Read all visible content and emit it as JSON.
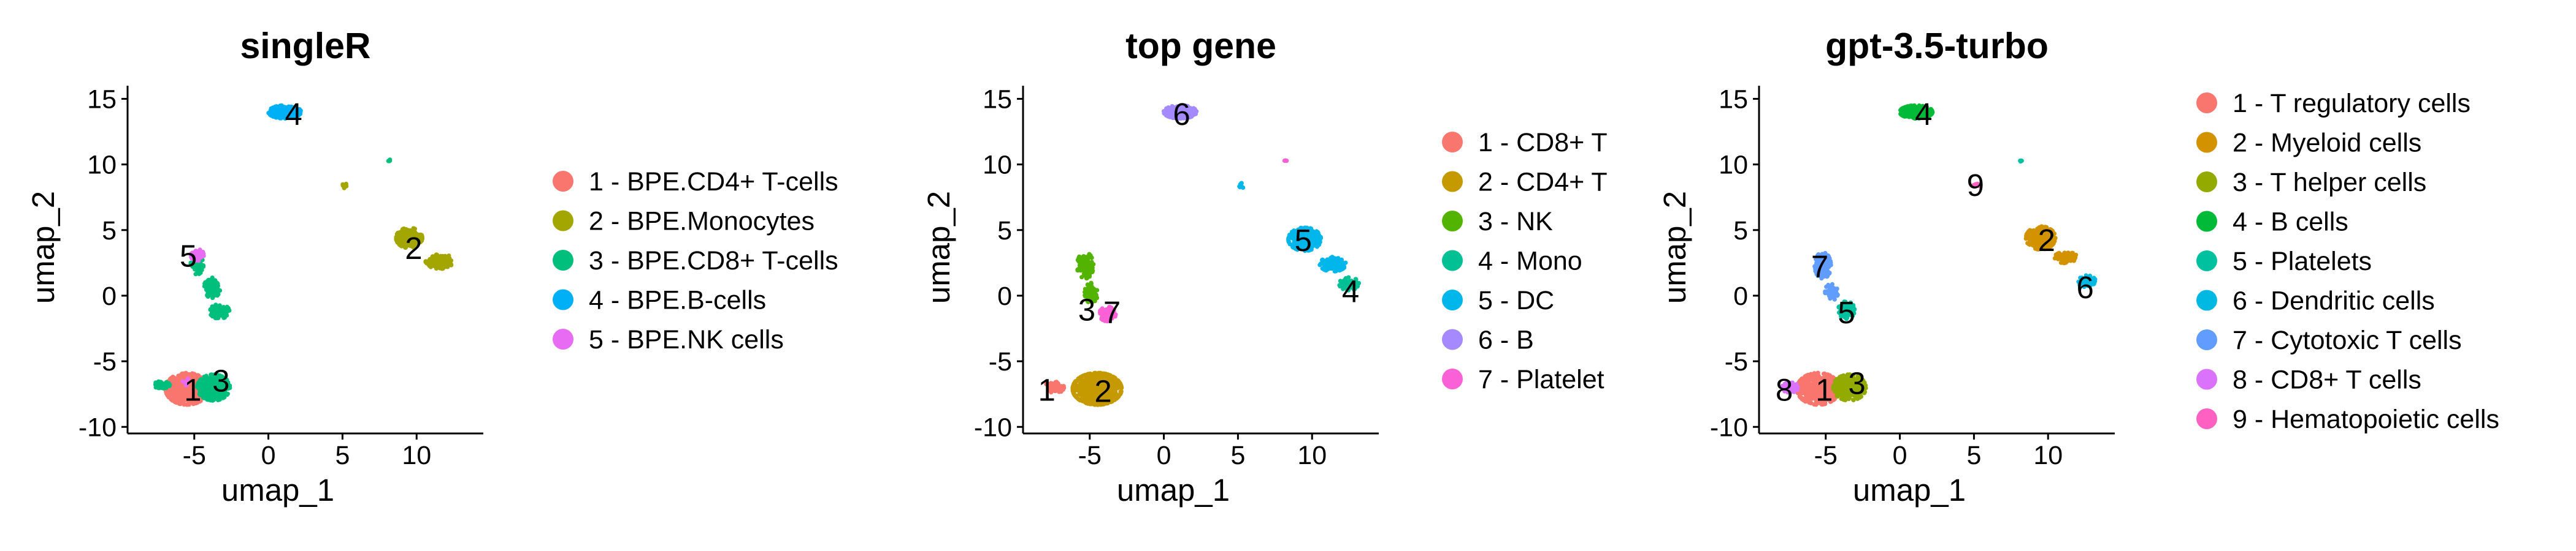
{
  "chart_data": [
    {
      "type": "scatter",
      "title": "singleR",
      "xlabel": "umap_1",
      "ylabel": "umap_2",
      "xlim": [
        -9.5,
        14.5
      ],
      "ylim": [
        -10.5,
        16
      ],
      "xticks": [
        -5,
        0,
        5,
        10
      ],
      "yticks": [
        -10,
        -5,
        0,
        5,
        10,
        15
      ],
      "legend_position": "right",
      "series": [
        {
          "name": "1 - BPE.CD4+ T-cells",
          "label": "1",
          "color": "#F8766D",
          "label_pos": [
            -5.1,
            -7.2
          ],
          "clusters": [
            {
              "x": -5.5,
              "y": -7.1,
              "sx": 1.3,
              "sy": 1.1,
              "n": 700
            }
          ]
        },
        {
          "name": "2 - BPE.Monocytes",
          "label": "2",
          "color": "#A3A500",
          "label_pos": [
            9.8,
            3.6
          ],
          "clusters": [
            {
              "x": 9.5,
              "y": 4.4,
              "sx": 0.8,
              "sy": 0.7,
              "n": 320
            },
            {
              "x": 11.6,
              "y": 2.6,
              "sx": 0.9,
              "sy": 0.5,
              "n": 180
            },
            {
              "x": 5.2,
              "y": 8.4,
              "sx": 0.2,
              "sy": 0.2,
              "n": 10
            }
          ]
        },
        {
          "name": "3 - BPE.CD8+ T-cells",
          "label": "3",
          "color": "#00BF7D",
          "label_pos": [
            -3.2,
            -6.5
          ],
          "clusters": [
            {
              "x": -3.7,
              "y": -7.0,
              "sx": 1.0,
              "sy": 0.9,
              "n": 420
            },
            {
              "x": -7.2,
              "y": -6.8,
              "sx": 0.5,
              "sy": 0.25,
              "n": 60
            },
            {
              "x": -4.8,
              "y": 2.5,
              "sx": 0.4,
              "sy": 0.8,
              "n": 60
            },
            {
              "x": -3.8,
              "y": 0.6,
              "sx": 0.5,
              "sy": 0.7,
              "n": 90
            },
            {
              "x": -3.3,
              "y": -1.2,
              "sx": 0.6,
              "sy": 0.5,
              "n": 120
            },
            {
              "x": 8.2,
              "y": 10.3,
              "sx": 0.1,
              "sy": 0.1,
              "n": 4
            }
          ]
        },
        {
          "name": "4 - BPE.B-cells",
          "label": "4",
          "color": "#00B0F6",
          "label_pos": [
            1.7,
            13.8
          ],
          "clusters": [
            {
              "x": 1.1,
              "y": 14.0,
              "sx": 1.0,
              "sy": 0.45,
              "n": 320
            }
          ]
        },
        {
          "name": "5 - BPE.NK cells",
          "label": "5",
          "color": "#E76BF3",
          "label_pos": [
            -5.4,
            3.0
          ],
          "clusters": [
            {
              "x": -4.8,
              "y": 3.1,
              "sx": 0.4,
              "sy": 0.4,
              "n": 40
            },
            {
              "x": -5.6,
              "y": -6.6,
              "sx": 0.3,
              "sy": 0.3,
              "n": 8
            }
          ]
        }
      ]
    },
    {
      "type": "scatter",
      "title": "top gene",
      "xlabel": "umap_1",
      "ylabel": "umap_2",
      "xlim": [
        -9.5,
        14.5
      ],
      "ylim": [
        -10.5,
        16
      ],
      "xticks": [
        -5,
        0,
        5,
        10
      ],
      "yticks": [
        -10,
        -5,
        0,
        5,
        10,
        15
      ],
      "legend_position": "right",
      "series": [
        {
          "name": "1 - CD8+ T",
          "label": "1",
          "color": "#F8766D",
          "label_pos": [
            -7.9,
            -7.2
          ],
          "clusters": [
            {
              "x": -7.4,
              "y": -7.0,
              "sx": 0.6,
              "sy": 0.4,
              "n": 90
            }
          ]
        },
        {
          "name": "2 - CD4+ T",
          "label": "2",
          "color": "#C49A00",
          "label_pos": [
            -4.1,
            -7.3
          ],
          "clusters": [
            {
              "x": -4.5,
              "y": -7.1,
              "sx": 1.5,
              "sy": 1.1,
              "n": 1000
            }
          ]
        },
        {
          "name": "3 - NK",
          "label": "3",
          "color": "#53B400",
          "label_pos": [
            -5.2,
            -1.1
          ],
          "clusters": [
            {
              "x": -5.3,
              "y": 2.3,
              "sx": 0.5,
              "sy": 0.9,
              "n": 130
            },
            {
              "x": -4.9,
              "y": 0.2,
              "sx": 0.4,
              "sy": 0.7,
              "n": 80
            }
          ]
        },
        {
          "name": "4 - Mono",
          "label": "4",
          "color": "#00C094",
          "label_pos": [
            12.6,
            0.3
          ],
          "clusters": [
            {
              "x": 12.5,
              "y": 0.9,
              "sx": 0.6,
              "sy": 0.45,
              "n": 70
            }
          ]
        },
        {
          "name": "5 - DC",
          "label": "5",
          "color": "#00B6EB",
          "label_pos": [
            9.4,
            4.2
          ],
          "clusters": [
            {
              "x": 9.5,
              "y": 4.3,
              "sx": 1.0,
              "sy": 0.8,
              "n": 400
            },
            {
              "x": 11.4,
              "y": 2.4,
              "sx": 0.8,
              "sy": 0.5,
              "n": 150
            },
            {
              "x": 5.2,
              "y": 8.4,
              "sx": 0.2,
              "sy": 0.2,
              "n": 10
            }
          ]
        },
        {
          "name": "6 - B",
          "label": "6",
          "color": "#A58AFF",
          "label_pos": [
            1.2,
            13.8
          ],
          "clusters": [
            {
              "x": 1.1,
              "y": 14.0,
              "sx": 1.0,
              "sy": 0.45,
              "n": 330
            }
          ]
        },
        {
          "name": "7 - Platelet",
          "label": "7",
          "color": "#FB61D7",
          "label_pos": [
            -3.5,
            -1.3
          ],
          "clusters": [
            {
              "x": -3.8,
              "y": -1.4,
              "sx": 0.5,
              "sy": 0.5,
              "n": 110
            },
            {
              "x": 8.2,
              "y": 10.3,
              "sx": 0.1,
              "sy": 0.1,
              "n": 4
            }
          ]
        }
      ]
    },
    {
      "type": "scatter",
      "title": "gpt-3.5-turbo",
      "xlabel": "umap_1",
      "ylabel": "umap_2",
      "xlim": [
        -9.5,
        14.5
      ],
      "ylim": [
        -10.5,
        16
      ],
      "xticks": [
        -5,
        0,
        5,
        10
      ],
      "yticks": [
        -10,
        -5,
        0,
        5,
        10,
        15
      ],
      "legend_position": "right",
      "series": [
        {
          "name": "1 - T regulatory cells",
          "label": "1",
          "color": "#F8766D",
          "label_pos": [
            -5.1,
            -7.2
          ],
          "clusters": [
            {
              "x": -5.5,
              "y": -7.1,
              "sx": 1.3,
              "sy": 1.1,
              "n": 600
            }
          ]
        },
        {
          "name": "2 - Myeloid cells",
          "label": "2",
          "color": "#D39200",
          "label_pos": [
            9.9,
            4.2
          ],
          "clusters": [
            {
              "x": 9.5,
              "y": 4.4,
              "sx": 0.9,
              "sy": 0.8,
              "n": 420
            },
            {
              "x": 11.2,
              "y": 2.9,
              "sx": 0.7,
              "sy": 0.4,
              "n": 100
            }
          ]
        },
        {
          "name": "3 - T helper cells",
          "label": "3",
          "color": "#93AA00",
          "label_pos": [
            -2.9,
            -6.7
          ],
          "clusters": [
            {
              "x": -3.4,
              "y": -7.0,
              "sx": 1.0,
              "sy": 0.9,
              "n": 450
            }
          ]
        },
        {
          "name": "4 - B cells",
          "label": "4",
          "color": "#00BA38",
          "label_pos": [
            1.6,
            13.8
          ],
          "clusters": [
            {
              "x": 1.1,
              "y": 14.0,
              "sx": 1.0,
              "sy": 0.45,
              "n": 320
            }
          ]
        },
        {
          "name": "5 - Platelets",
          "label": "5",
          "color": "#00C19F",
          "label_pos": [
            -3.6,
            -1.3
          ],
          "clusters": [
            {
              "x": -3.6,
              "y": -1.1,
              "sx": 0.5,
              "sy": 0.6,
              "n": 120
            },
            {
              "x": 8.2,
              "y": 10.3,
              "sx": 0.1,
              "sy": 0.1,
              "n": 4
            }
          ]
        },
        {
          "name": "6 - Dendritic cells",
          "label": "6",
          "color": "#00B9E3",
          "label_pos": [
            12.5,
            0.6
          ],
          "clusters": [
            {
              "x": 12.6,
              "y": 1.1,
              "sx": 0.55,
              "sy": 0.4,
              "n": 70
            }
          ]
        },
        {
          "name": "7 - Cytotoxic T cells",
          "label": "7",
          "color": "#619CFF",
          "label_pos": [
            -5.4,
            2.2
          ],
          "clusters": [
            {
              "x": -5.2,
              "y": 2.3,
              "sx": 0.5,
              "sy": 0.9,
              "n": 150
            },
            {
              "x": -4.6,
              "y": 0.3,
              "sx": 0.4,
              "sy": 0.6,
              "n": 60
            }
          ]
        },
        {
          "name": "8 - CD8+ T cells",
          "label": "8",
          "color": "#DB72FB",
          "label_pos": [
            -7.8,
            -7.2
          ],
          "clusters": [
            {
              "x": -7.4,
              "y": -7.0,
              "sx": 0.5,
              "sy": 0.35,
              "n": 70
            }
          ]
        },
        {
          "name": "9 - Hematopoietic cells",
          "label": "9",
          "color": "#FF61C3",
          "label_pos": [
            5.1,
            8.4
          ],
          "clusters": [
            {
              "x": 5.2,
              "y": 8.4,
              "sx": 0.2,
              "sy": 0.2,
              "n": 10
            }
          ]
        }
      ]
    }
  ]
}
